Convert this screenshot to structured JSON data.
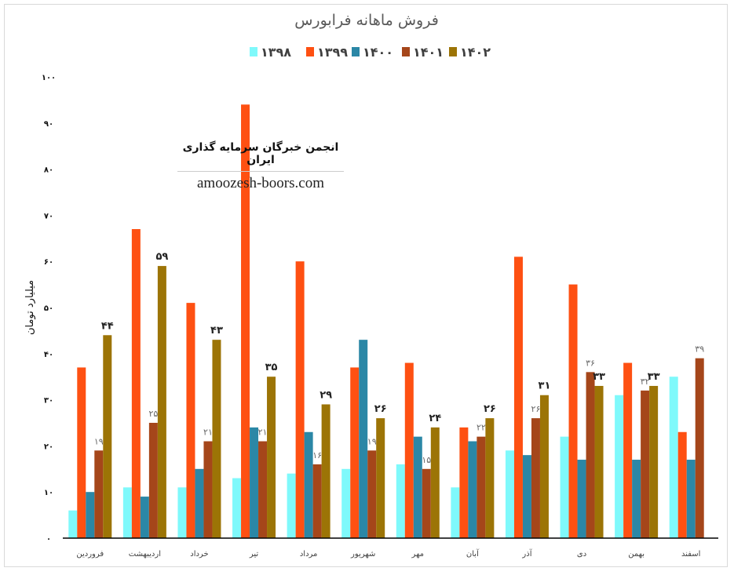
{
  "chart_data": {
    "type": "bar",
    "title": "فروش ماهانه فرابورس",
    "ylabel": "میلیارد تومان",
    "xlabel": "",
    "ylim": [
      0,
      100
    ],
    "yticks": [
      0,
      10,
      20,
      30,
      40,
      50,
      60,
      70,
      80,
      90,
      100
    ],
    "ytick_labels": [
      "۰",
      "۱۰",
      "۲۰",
      "۳۰",
      "۴۰",
      "۵۰",
      "۶۰",
      "۷۰",
      "۸۰",
      "۹۰",
      "۱۰۰"
    ],
    "legend_position": "top",
    "grid": false,
    "categories": [
      "فروردین",
      "اردیبهشت",
      "خرداد",
      "تیر",
      "مرداد",
      "شهریور",
      "مهر",
      "آبان",
      "آذر",
      "دی",
      "بهمن",
      "اسفند"
    ],
    "series": [
      {
        "name": "۱۳۹۸",
        "color": "#7ff9fb",
        "values": [
          6,
          11,
          11,
          13,
          14,
          15,
          16,
          11,
          19,
          22,
          31,
          35
        ],
        "labels": null
      },
      {
        "name": "۱۳۹۹",
        "color": "#fe5012",
        "values": [
          37,
          67,
          51,
          94,
          60,
          37,
          38,
          24,
          61,
          55,
          38,
          23
        ],
        "labels": null
      },
      {
        "name": "۱۴۰۰",
        "color": "#2b87a6",
        "values": [
          10,
          9,
          15,
          24,
          23,
          43,
          22,
          21,
          18,
          17,
          17,
          17
        ],
        "labels": null
      },
      {
        "name": "۱۴۰۱",
        "color": "#a5461a",
        "values": [
          19,
          25,
          21,
          21,
          16,
          19,
          15,
          22,
          26,
          36,
          32,
          39
        ],
        "labels": [
          "۱۹",
          "۲۵",
          "۲۱",
          "۲۱",
          "۱۶",
          "۱۹",
          "۱۵",
          "۲۲",
          "۲۶",
          "۳۶",
          "۳۲",
          "۳۹"
        ]
      },
      {
        "name": "۱۴۰۲",
        "color": "#9c7406",
        "values": [
          44,
          59,
          43,
          35,
          29,
          26,
          24,
          26,
          31,
          33,
          33,
          null
        ],
        "labels": [
          "۴۴",
          "۵۹",
          "۴۳",
          "۳۵",
          "۲۹",
          "۲۶",
          "۲۴",
          "۲۶",
          "۳۱",
          "۳۳",
          "۳۳",
          null
        ]
      }
    ]
  },
  "watermark": {
    "title": "انجمن خبرگان سرمایه گذاری ایران",
    "site": "amoozesh-boors.com"
  }
}
